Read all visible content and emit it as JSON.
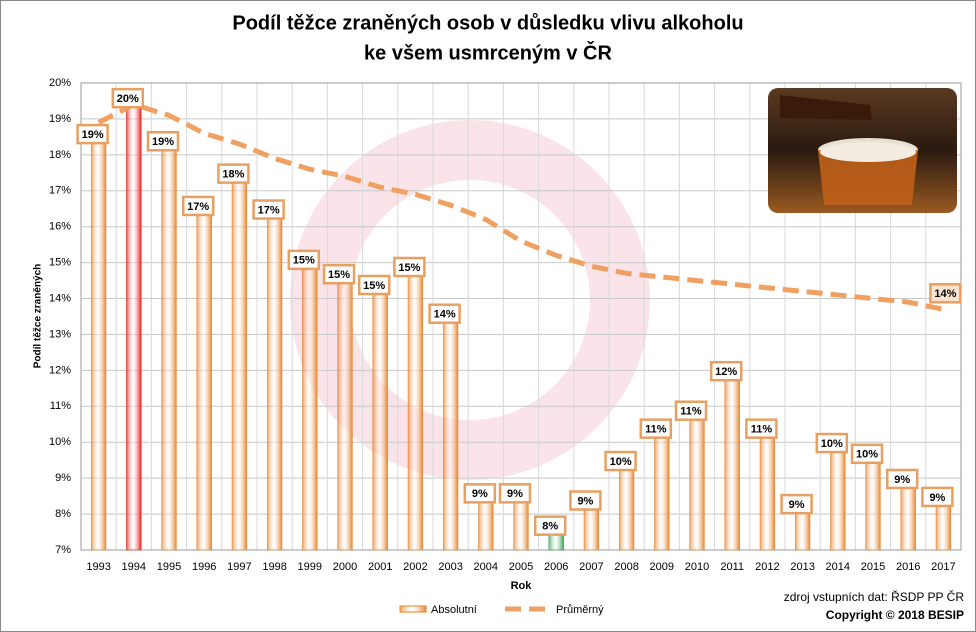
{
  "chart_data": {
    "type": "bar",
    "title": "Podíl těžce zraněných osob v důsledku vlivu alkoholu",
    "subtitle": "ke všem usmrceným v ČR",
    "y_label": "Podíl těžce zraněných",
    "x_label": "Rok",
    "categories": [
      "1993",
      "1994",
      "1995",
      "1996",
      "1997",
      "1998",
      "1999",
      "2000",
      "2001",
      "2002",
      "2003",
      "2004",
      "2005",
      "2006",
      "2007",
      "2008",
      "2009",
      "2010",
      "2011",
      "2012",
      "2013",
      "2014",
      "2015",
      "2016",
      "2017"
    ],
    "series": [
      {
        "name": "Absolutní",
        "type": "bar",
        "color": "#e8822a",
        "colors": [
          "#e8822a",
          "#e81c1c",
          "#e8822a",
          "#e8822a",
          "#e8822a",
          "#e8822a",
          "#e8822a",
          "#e8822a",
          "#e8822a",
          "#e8822a",
          "#e8822a",
          "#e8822a",
          "#e8822a",
          "#2ea44f",
          "#e8822a",
          "#e8822a",
          "#e8822a",
          "#e8822a",
          "#e8822a",
          "#e8822a",
          "#e8822a",
          "#e8822a",
          "#e8822a",
          "#e8822a",
          "#e8822a"
        ],
        "values": [
          18.8,
          19.8,
          18.6,
          16.8,
          17.7,
          16.7,
          15.3,
          14.9,
          14.6,
          15.1,
          13.8,
          8.8,
          8.8,
          7.9,
          8.6,
          9.7,
          10.6,
          11.1,
          12.2,
          10.6,
          8.5,
          10.2,
          9.9,
          9.2,
          8.7
        ],
        "value_labels": [
          "19%",
          "20%",
          "19%",
          "17%",
          "18%",
          "17%",
          "15%",
          "15%",
          "15%",
          "15%",
          "14%",
          "9%",
          "9%",
          "8%",
          "9%",
          "10%",
          "11%",
          "11%",
          "12%",
          "11%",
          "9%",
          "10%",
          "10%",
          "9%",
          "9%"
        ]
      },
      {
        "name": "Průměrný",
        "type": "line",
        "color": "#f0a060",
        "dashed": true,
        "values": [
          18.9,
          19.4,
          19.1,
          18.6,
          18.3,
          17.9,
          17.6,
          17.4,
          17.1,
          16.9,
          16.6,
          16.2,
          15.6,
          15.2,
          14.9,
          14.7,
          14.6,
          14.5,
          14.4,
          14.3,
          14.2,
          14.1,
          14.0,
          13.9,
          13.7
        ],
        "value_labels": [
          null,
          null,
          null,
          null,
          null,
          null,
          null,
          null,
          null,
          null,
          null,
          null,
          null,
          null,
          null,
          null,
          null,
          null,
          null,
          null,
          null,
          null,
          null,
          null,
          "14%"
        ]
      }
    ],
    "ylim": [
      7,
      20
    ],
    "yticks": [
      {
        "value": 7,
        "label": "7%"
      },
      {
        "value": 8,
        "label": "8%"
      },
      {
        "value": 9,
        "label": "9%"
      },
      {
        "value": 10,
        "label": "10%"
      },
      {
        "value": 11,
        "label": "11%"
      },
      {
        "value": 12,
        "label": "12%"
      },
      {
        "value": 13,
        "label": "13%"
      },
      {
        "value": 14,
        "label": "14%"
      },
      {
        "value": 15,
        "label": "15%"
      },
      {
        "value": 16,
        "label": "16%"
      },
      {
        "value": 17,
        "label": "17%"
      },
      {
        "value": 18,
        "label": "18%"
      },
      {
        "value": 19,
        "label": "19%"
      },
      {
        "value": 20,
        "label": "20%"
      }
    ],
    "grid": true,
    "legend": "bottom",
    "source": "zdroj vstupních dat: ŘSDP PP ČR",
    "copyright": "Copyright © 2018 BESIP"
  }
}
